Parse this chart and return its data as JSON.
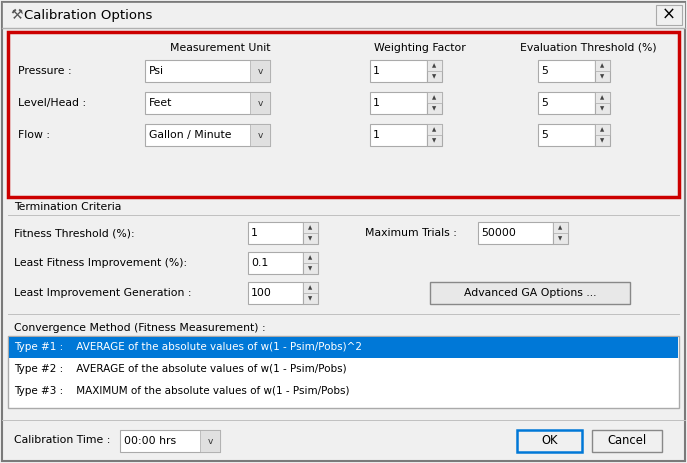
{
  "title": "Calibration Options",
  "bg_color": "#f0f0f0",
  "section1_header_cols": [
    "Measurement Unit",
    "Weighting Factor",
    "Evaluation Threshold (%)"
  ],
  "rows": [
    "Pressure :",
    "Level/Head :",
    "Flow :"
  ],
  "meas_units": [
    "Psi",
    "Feet",
    "Gallon / Minute"
  ],
  "weighting": [
    "1",
    "1",
    "1"
  ],
  "eval_thresh": [
    "5",
    "5",
    "5"
  ],
  "termination_label": "Termination Criteria",
  "term_rows": [
    {
      "label": "Fitness Threshold (%):",
      "value": "1"
    },
    {
      "label": "Least Fitness Improvement (%):",
      "value": "0.1"
    },
    {
      "label": "Least Improvement Generation :",
      "value": "100"
    }
  ],
  "max_trials_label": "Maximum Trials :",
  "max_trials_value": "50000",
  "adv_btn": "Advanced GA Options ...",
  "conv_label": "Convergence Method (Fitness Measurement) :",
  "conv_items": [
    "Type #1 :    AVERAGE of the absolute values of w(1 - Psim/Pobs)^2",
    "Type #2 :    AVERAGE of the absolute values of w(1 - Psim/Pobs)",
    "Type #3 :    MAXIMUM of the absolute values of w(1 - Psim/Pobs)"
  ],
  "cal_time_label": "Calibration Time :",
  "cal_time_value": "00:00 hrs",
  "ok_btn": "OK",
  "cancel_btn": "Cancel",
  "red_outline_color": "#cc0000",
  "highlight_blue": "#0078d7",
  "listbox_selected_bg": "#0078d7",
  "listbox_selected_fg": "#ffffff",
  "listbox_normal_fg": "#000000",
  "listbox_bg": "#ffffff",
  "border_color": "#aaaaaa",
  "input_bg": "#ffffff",
  "text_color": "#000000",
  "dialog_border": "#7a7a7a",
  "section_bg": "#ececec",
  "font_size": 7.8,
  "title_font_size": 9.5
}
